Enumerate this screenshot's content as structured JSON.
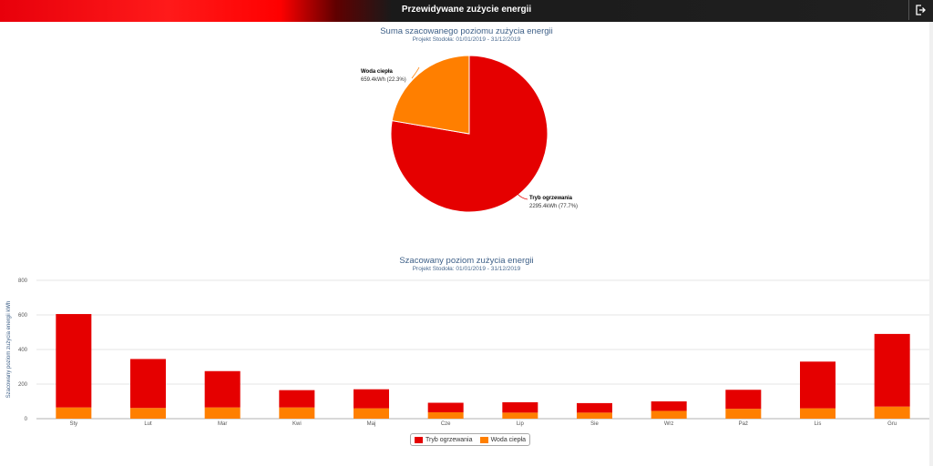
{
  "header": {
    "title": "Przewidywane zużycie energii",
    "exit_icon": "exit-icon"
  },
  "colors": {
    "heating": "#e50000",
    "water": "#ff7f00"
  },
  "pie": {
    "title": "Suma szacowanego poziomu zużycia energii",
    "subtitle": "Projekt Stodoła: 01/01/2019 - 31/12/2019",
    "slices": [
      {
        "name": "Tryb ogrzewania",
        "value_label": "2295.4kWh (77.7%)",
        "value": 2295.4,
        "percent": 77.7
      },
      {
        "name": "Woda ciepła",
        "value_label": "659.4kWh (22.3%)",
        "value": 659.4,
        "percent": 22.3
      }
    ]
  },
  "chart_data": {
    "type": "bar",
    "title": "Szacowany poziom zużycia energii",
    "subtitle": "Projekt Stodoła: 01/01/2019 - 31/12/2019",
    "ylabel": "Szacowany poziom zużycia energii kWh",
    "xlabel": "",
    "ylim": [
      0,
      800
    ],
    "yticks": [
      0,
      200,
      400,
      600,
      800
    ],
    "stacked": true,
    "categories": [
      "Sty",
      "Lut",
      "Mar",
      "Kwi",
      "Maj",
      "Cze",
      "Lip",
      "Sie",
      "Wrz",
      "Paź",
      "Lis",
      "Gru"
    ],
    "series": [
      {
        "name": "Tryb ogrzewania",
        "values": [
          540,
          283,
          210,
          100,
          110,
          55,
          60,
          55,
          55,
          110,
          270,
          420
        ]
      },
      {
        "name": "Woda ciepła",
        "values": [
          65,
          62,
          65,
          65,
          60,
          37,
          35,
          35,
          45,
          57,
          60,
          70
        ]
      }
    ]
  },
  "legend": {
    "items": [
      "Tryb ogrzewania",
      "Woda ciepła"
    ]
  }
}
